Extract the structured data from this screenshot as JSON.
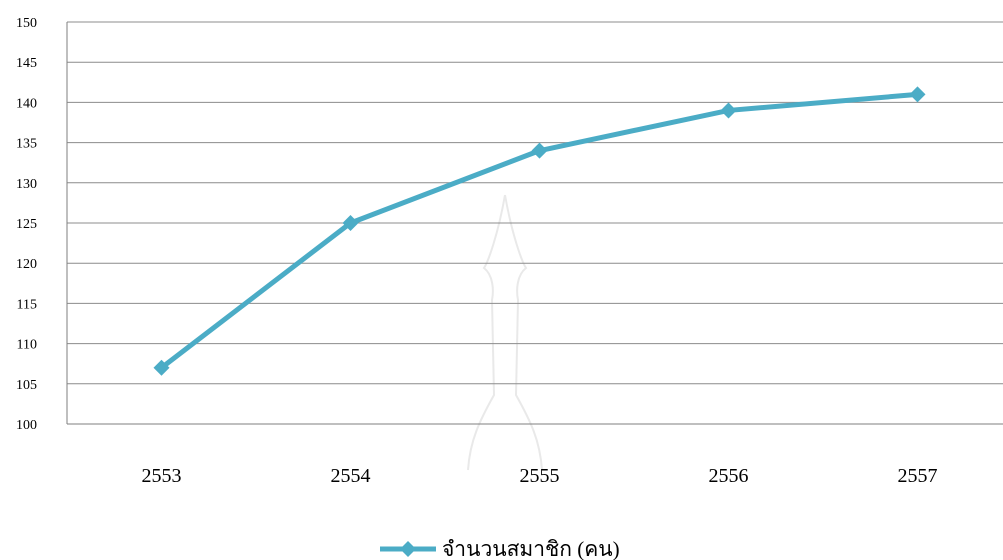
{
  "chart_data": {
    "type": "line",
    "categories": [
      "2553",
      "2554",
      "2555",
      "2556",
      "2557"
    ],
    "series": [
      {
        "name": "จำนวนสมาชิก (คน)",
        "values": [
          107,
          125,
          134,
          139,
          141
        ]
      }
    ],
    "title": "",
    "xlabel": "",
    "ylabel": "",
    "ylim": [
      100,
      150
    ],
    "ytick_step": 5,
    "grid": true,
    "legend": "bottom-center",
    "colors": {
      "line": "#4BACC6",
      "grid": "#8C8C8C",
      "axis": "#7F7F7F"
    },
    "watermark": "faint temple-spire outline behind plot area"
  }
}
